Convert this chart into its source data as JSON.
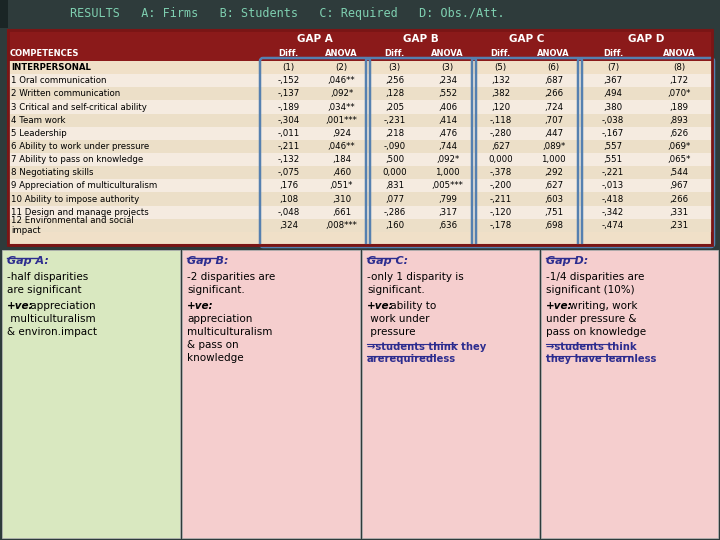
{
  "title": "RESULTS   A: Firms   B: Students   C: Required   D: Obs./Att.",
  "title_bg": "#2e3b3b",
  "title_color": "#7ecfb0",
  "table_header_bg": "#8b1a1a",
  "gap_border_color": "#5580b0",
  "rows": [
    [
      "COMPETENCES",
      "Diff.",
      "ANOVA",
      "Diff.",
      "ANOVA",
      "Diff.",
      "ANOVA",
      "Diff.",
      "ANOVA"
    ],
    [
      "INTERPERSONAL",
      "(1)",
      "(2)",
      "(3)",
      "(3)",
      "(5)",
      "(6)",
      "(7)",
      "(8)"
    ],
    [
      "1 Oral communication",
      "-,152",
      ",046**",
      ",256",
      ",234",
      ",132",
      ",687",
      ",367",
      ",172"
    ],
    [
      "2 Written communication",
      "-,137",
      ",092*",
      ",128",
      ",552",
      ",382",
      ",266",
      ",494",
      ",070*"
    ],
    [
      "3 Critical and self-critical ability",
      "-,189",
      ",034**",
      ",205",
      ",406",
      ",120",
      ",724",
      ",380",
      ",189"
    ],
    [
      "4 Team work",
      "-,304",
      ",001***",
      "-,231",
      ",414",
      "-,118",
      ",707",
      "-,038",
      ",893"
    ],
    [
      "5 Leadership",
      "-,011",
      ",924",
      ",218",
      ",476",
      "-,280",
      ",447",
      "-,167",
      ",626"
    ],
    [
      "6 Ability to work under pressure",
      "-,211",
      ",046**",
      "-,090",
      ",744",
      ",627",
      ",089*",
      ",557",
      ",069*"
    ],
    [
      "7 Ability to pass on knowledge",
      "-,132",
      ",184",
      ",500",
      ",092*",
      "0,000",
      "1,000",
      ",551",
      ",065*"
    ],
    [
      "8 Negotiating skills",
      "-,075",
      ",460",
      "0,000",
      "1,000",
      "-,378",
      ",292",
      "-,221",
      ",544"
    ],
    [
      "9 Appreciation of multiculturalism",
      ",176",
      ",051*",
      ",831",
      ",005***",
      "-,200",
      ",627",
      "-,013",
      ",967"
    ],
    [
      "10 Ability to impose authority",
      ",108",
      ",310",
      ",077",
      ",799",
      "-,211",
      ",603",
      "-,418",
      ",266"
    ],
    [
      "11 Design and manage projects",
      "-,048",
      ",661",
      "-,286",
      ",317",
      "-,120",
      ",751",
      "-,342",
      ",331"
    ],
    [
      "12 Environmental and social\nimpact",
      ",324",
      ",008***",
      ",160",
      ",636",
      "-,178",
      ",698",
      "-,474",
      ",231"
    ]
  ],
  "bottom_boxes": [
    {
      "bg": "#d9e8c0",
      "title": "Gap A:",
      "title_color": "#2d2d8f",
      "line1": "-half disparities\nare significant",
      "line2_italic": "+ve:",
      "line2_rest": " appreciation\n multiculturalism\n& environ.impact",
      "arrow_lines": []
    },
    {
      "bg": "#f5cece",
      "title": "Gap B:",
      "title_color": "#2d2d8f",
      "line1": "-2 disparities are\nsignificant.",
      "line2_italic": "+ve:",
      "line2_rest": "\nappreciation\nmulticulturalism\n& pass on\nknowledge",
      "arrow_lines": []
    },
    {
      "bg": "#f5cece",
      "title": "Gap C:",
      "title_color": "#2d2d8f",
      "line1": "-only 1 disparity is\nsignificant.",
      "line2_italic": "+ve:",
      "line2_rest": " ability to\n work under\n pressure",
      "arrow_lines": [
        "→students think they\narerequiredless"
      ]
    },
    {
      "bg": "#f5cece",
      "title": "Gap D:",
      "title_color": "#2d2d8f",
      "line1": "-1/4 disparities are\nsignificant (10%)",
      "line2_italic": "+ve:",
      "line2_rest": " writing, work\nunder pressure &\npass on knowledge",
      "arrow_lines": [
        "→students think\nthey have learnless"
      ]
    }
  ]
}
